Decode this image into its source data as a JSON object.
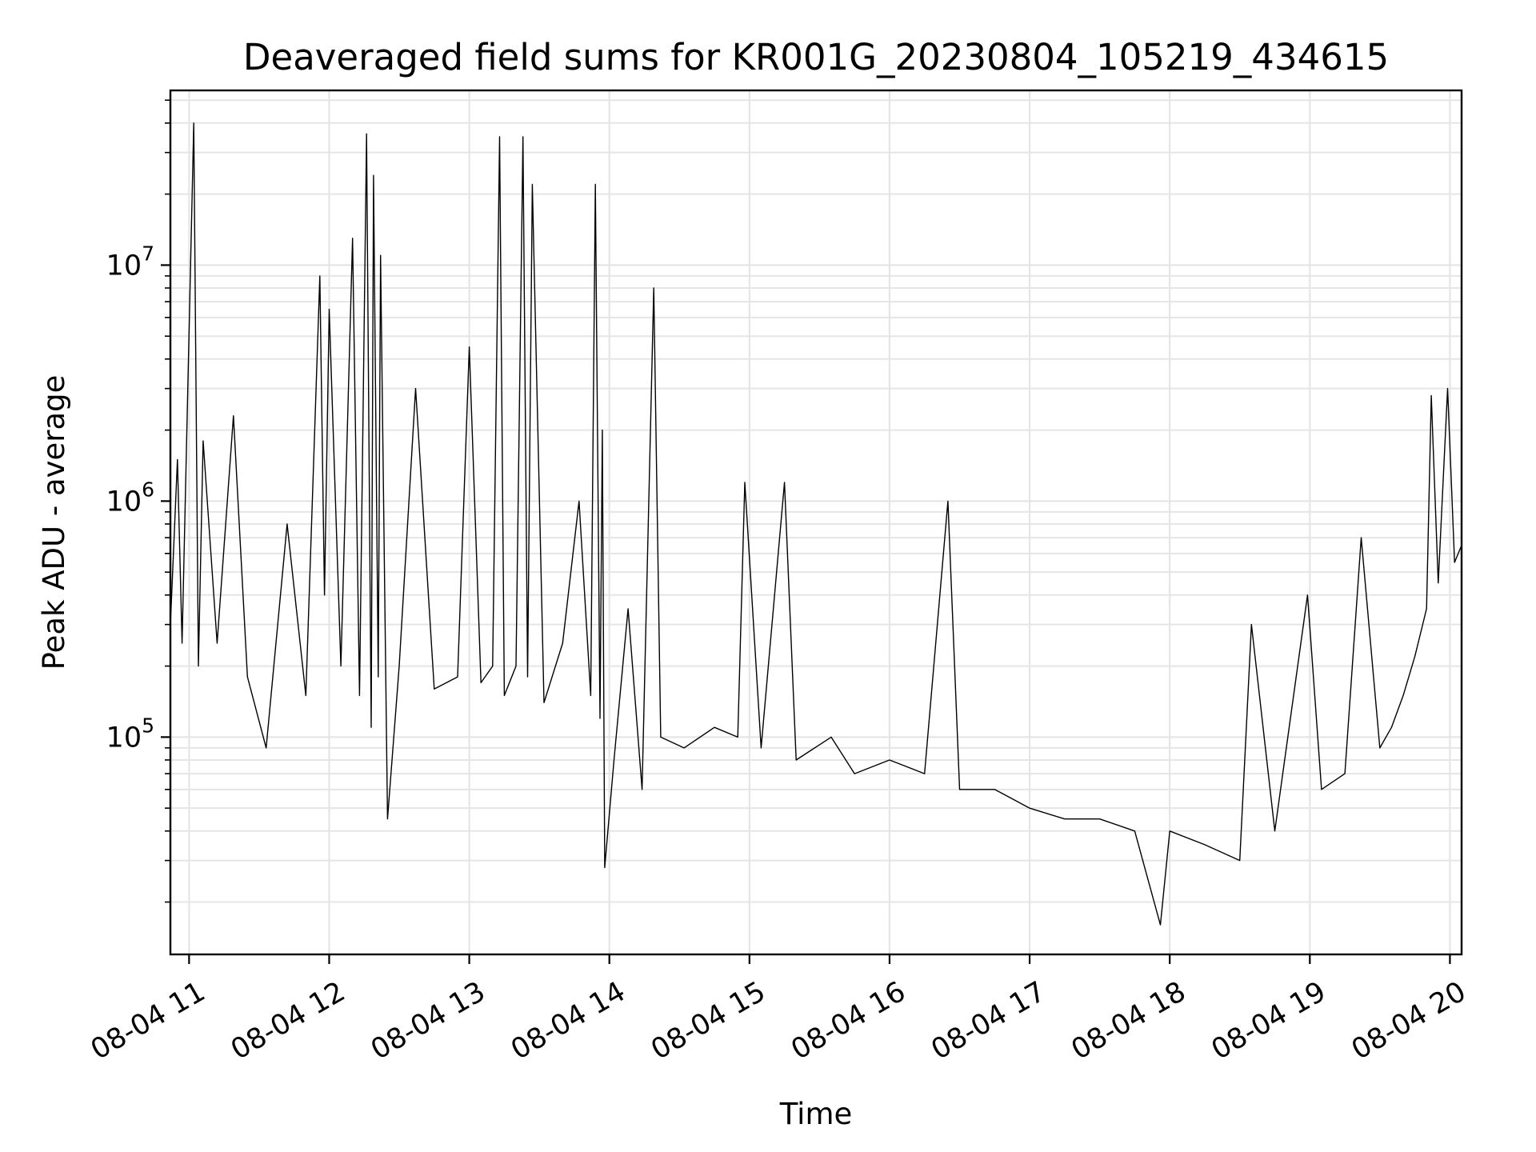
{
  "chart_data": {
    "type": "line",
    "title": "Deaveraged field sums for KR001G_20230804_105219_434615",
    "xlabel": "Time",
    "ylabel": "Peak ADU - average",
    "x_scale": "time",
    "y_scale": "log",
    "xlim": [
      "2023-08-04 10:52",
      "2023-08-04 20:05"
    ],
    "ylim": [
      12000,
      55000000
    ],
    "grid": true,
    "legend": "none",
    "line_color": "#000000",
    "grid_color": "#e5e5e5",
    "x_ticks": [
      {
        "t": "2023-08-04 11:00",
        "label": "08-04 11"
      },
      {
        "t": "2023-08-04 12:00",
        "label": "08-04 12"
      },
      {
        "t": "2023-08-04 13:00",
        "label": "08-04 13"
      },
      {
        "t": "2023-08-04 14:00",
        "label": "08-04 14"
      },
      {
        "t": "2023-08-04 15:00",
        "label": "08-04 15"
      },
      {
        "t": "2023-08-04 16:00",
        "label": "08-04 16"
      },
      {
        "t": "2023-08-04 17:00",
        "label": "08-04 17"
      },
      {
        "t": "2023-08-04 18:00",
        "label": "08-04 18"
      },
      {
        "t": "2023-08-04 19:00",
        "label": "08-04 19"
      },
      {
        "t": "2023-08-04 20:00",
        "label": "08-04 20"
      }
    ],
    "y_ticks": [
      {
        "value": 100000,
        "base": "10",
        "exp": "5"
      },
      {
        "value": 1000000,
        "base": "10",
        "exp": "6"
      },
      {
        "value": 10000000,
        "base": "10",
        "exp": "7"
      }
    ],
    "series": [
      {
        "values": [
          [
            "2023-08-04 10:52",
            300000
          ],
          [
            "2023-08-04 10:55",
            1500000
          ],
          [
            "2023-08-04 10:57",
            250000
          ],
          [
            "2023-08-04 11:02",
            40000000
          ],
          [
            "2023-08-04 11:04",
            200000
          ],
          [
            "2023-08-04 11:06",
            1800000
          ],
          [
            "2023-08-04 11:12",
            250000
          ],
          [
            "2023-08-04 11:19",
            2300000
          ],
          [
            "2023-08-04 11:25",
            180000
          ],
          [
            "2023-08-04 11:33",
            90000
          ],
          [
            "2023-08-04 11:42",
            800000
          ],
          [
            "2023-08-04 11:50",
            150000
          ],
          [
            "2023-08-04 11:56",
            9000000
          ],
          [
            "2023-08-04 11:58",
            400000
          ],
          [
            "2023-08-04 12:00",
            6500000
          ],
          [
            "2023-08-04 12:05",
            200000
          ],
          [
            "2023-08-04 12:10",
            13000000
          ],
          [
            "2023-08-04 12:13",
            150000
          ],
          [
            "2023-08-04 12:16",
            36000000
          ],
          [
            "2023-08-04 12:18",
            110000
          ],
          [
            "2023-08-04 12:19",
            24000000
          ],
          [
            "2023-08-04 12:21",
            180000
          ],
          [
            "2023-08-04 12:22",
            11000000
          ],
          [
            "2023-08-04 12:25",
            45000
          ],
          [
            "2023-08-04 12:30",
            200000
          ],
          [
            "2023-08-04 12:37",
            3000000
          ],
          [
            "2023-08-04 12:45",
            160000
          ],
          [
            "2023-08-04 12:55",
            180000
          ],
          [
            "2023-08-04 13:00",
            4500000
          ],
          [
            "2023-08-04 13:05",
            170000
          ],
          [
            "2023-08-04 13:10",
            200000
          ],
          [
            "2023-08-04 13:13",
            35000000
          ],
          [
            "2023-08-04 13:15",
            150000
          ],
          [
            "2023-08-04 13:20",
            200000
          ],
          [
            "2023-08-04 13:23",
            35000000
          ],
          [
            "2023-08-04 13:25",
            180000
          ],
          [
            "2023-08-04 13:27",
            22000000
          ],
          [
            "2023-08-04 13:32",
            140000
          ],
          [
            "2023-08-04 13:40",
            250000
          ],
          [
            "2023-08-04 13:47",
            1000000
          ],
          [
            "2023-08-04 13:52",
            150000
          ],
          [
            "2023-08-04 13:54",
            22000000
          ],
          [
            "2023-08-04 13:56",
            120000
          ],
          [
            "2023-08-04 13:57",
            2000000
          ],
          [
            "2023-08-04 13:58",
            28000
          ],
          [
            "2023-08-04 14:02",
            80000
          ],
          [
            "2023-08-04 14:08",
            350000
          ],
          [
            "2023-08-04 14:14",
            60000
          ],
          [
            "2023-08-04 14:19",
            8000000
          ],
          [
            "2023-08-04 14:22",
            100000
          ],
          [
            "2023-08-04 14:32",
            90000
          ],
          [
            "2023-08-04 14:45",
            110000
          ],
          [
            "2023-08-04 14:55",
            100000
          ],
          [
            "2023-08-04 14:58",
            1200000
          ],
          [
            "2023-08-04 15:05",
            90000
          ],
          [
            "2023-08-04 15:15",
            1200000
          ],
          [
            "2023-08-04 15:20",
            80000
          ],
          [
            "2023-08-04 15:35",
            100000
          ],
          [
            "2023-08-04 15:45",
            70000
          ],
          [
            "2023-08-04 16:00",
            80000
          ],
          [
            "2023-08-04 16:15",
            70000
          ],
          [
            "2023-08-04 16:25",
            1000000
          ],
          [
            "2023-08-04 16:30",
            60000
          ],
          [
            "2023-08-04 16:45",
            60000
          ],
          [
            "2023-08-04 17:00",
            50000
          ],
          [
            "2023-08-04 17:15",
            45000
          ],
          [
            "2023-08-04 17:30",
            45000
          ],
          [
            "2023-08-04 17:45",
            40000
          ],
          [
            "2023-08-04 17:56",
            16000
          ],
          [
            "2023-08-04 18:00",
            40000
          ],
          [
            "2023-08-04 18:15",
            35000
          ],
          [
            "2023-08-04 18:30",
            30000
          ],
          [
            "2023-08-04 18:35",
            300000
          ],
          [
            "2023-08-04 18:45",
            40000
          ],
          [
            "2023-08-04 18:59",
            400000
          ],
          [
            "2023-08-04 19:05",
            60000
          ],
          [
            "2023-08-04 19:15",
            70000
          ],
          [
            "2023-08-04 19:22",
            700000
          ],
          [
            "2023-08-04 19:30",
            90000
          ],
          [
            "2023-08-04 19:35",
            110000
          ],
          [
            "2023-08-04 19:40",
            150000
          ],
          [
            "2023-08-04 19:45",
            220000
          ],
          [
            "2023-08-04 19:50",
            350000
          ],
          [
            "2023-08-04 19:52",
            2800000
          ],
          [
            "2023-08-04 19:55",
            450000
          ],
          [
            "2023-08-04 19:59",
            3000000
          ],
          [
            "2023-08-04 20:02",
            550000
          ],
          [
            "2023-08-04 20:05",
            650000
          ]
        ]
      }
    ]
  }
}
